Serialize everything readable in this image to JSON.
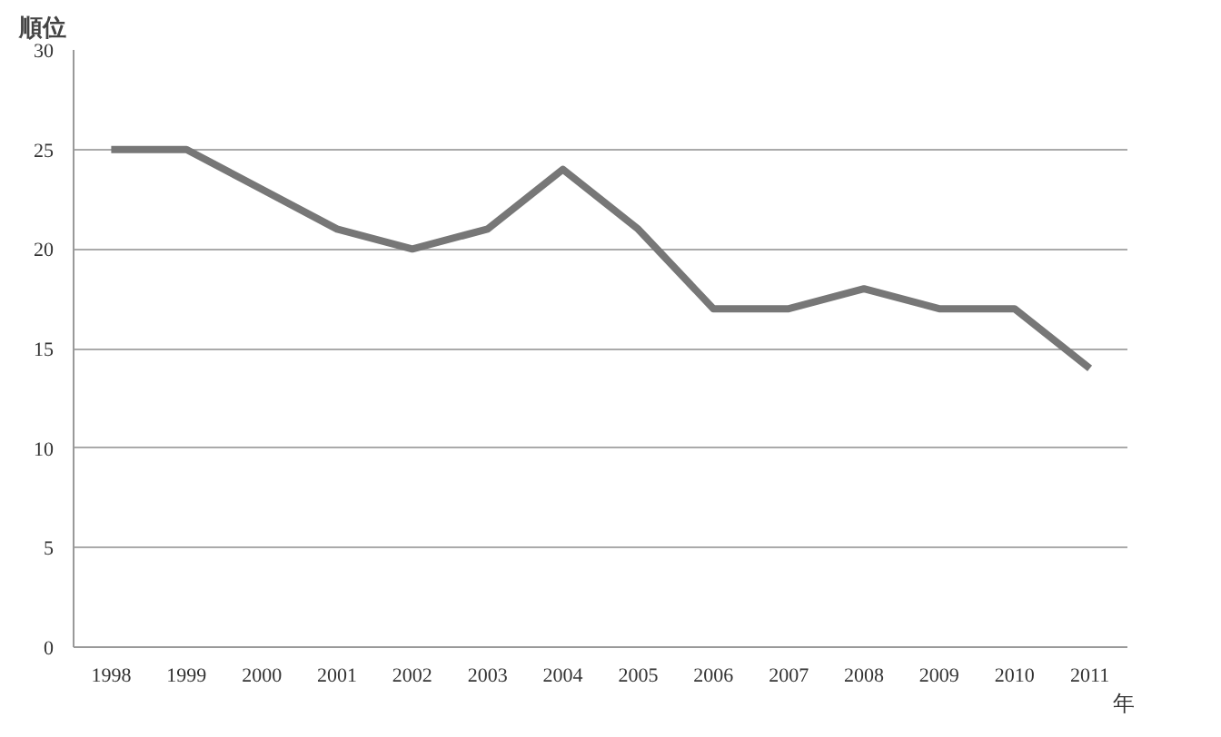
{
  "chart_data": {
    "type": "line",
    "ylabel": "順位",
    "xlabel": "年",
    "categories": [
      "1998",
      "1999",
      "2000",
      "2001",
      "2002",
      "2003",
      "2004",
      "2005",
      "2006",
      "2007",
      "2008",
      "2009",
      "2010",
      "2011"
    ],
    "series": [
      {
        "color": "#777777",
        "values": [
          25,
          25,
          23,
          21,
          20,
          21,
          24,
          21,
          17,
          17,
          18,
          17,
          17,
          14
        ]
      }
    ],
    "ylim": [
      0,
      30
    ],
    "yticks": [
      0,
      5,
      10,
      15,
      20,
      25,
      30
    ],
    "grid": "y",
    "marker": "none",
    "line_style": "solid"
  }
}
